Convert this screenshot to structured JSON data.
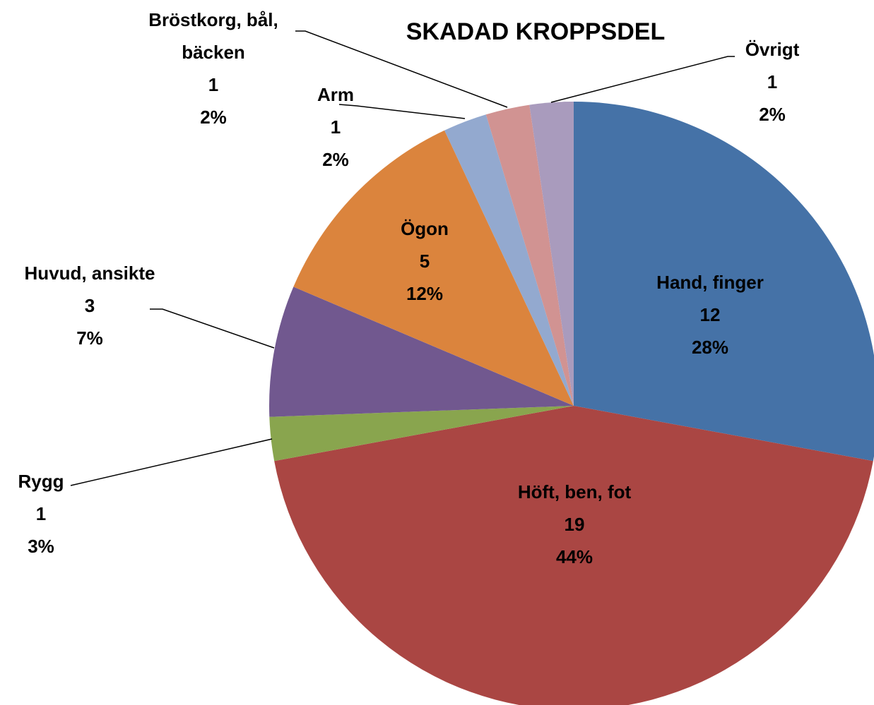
{
  "chart_data": {
    "type": "pie",
    "title": "SKADAD KROPPSDEL",
    "categories": [
      "Hand, finger",
      "Höft, ben, fot",
      "Rygg",
      "Huvud, ansikte",
      "Ögon",
      "Arm",
      "Bröstkorg, bål, bäcken",
      "Övrigt"
    ],
    "values": [
      12,
      19,
      1,
      3,
      5,
      1,
      1,
      1
    ],
    "percent_labels": [
      "28%",
      "44%",
      "3%",
      "7%",
      "12%",
      "2%",
      "2%",
      "2%"
    ],
    "colors": [
      "#4572a7",
      "#aa4643",
      "#89a54e",
      "#71588f",
      "#db843d",
      "#93a9cf",
      "#d19392",
      "#a99bbd"
    ]
  }
}
